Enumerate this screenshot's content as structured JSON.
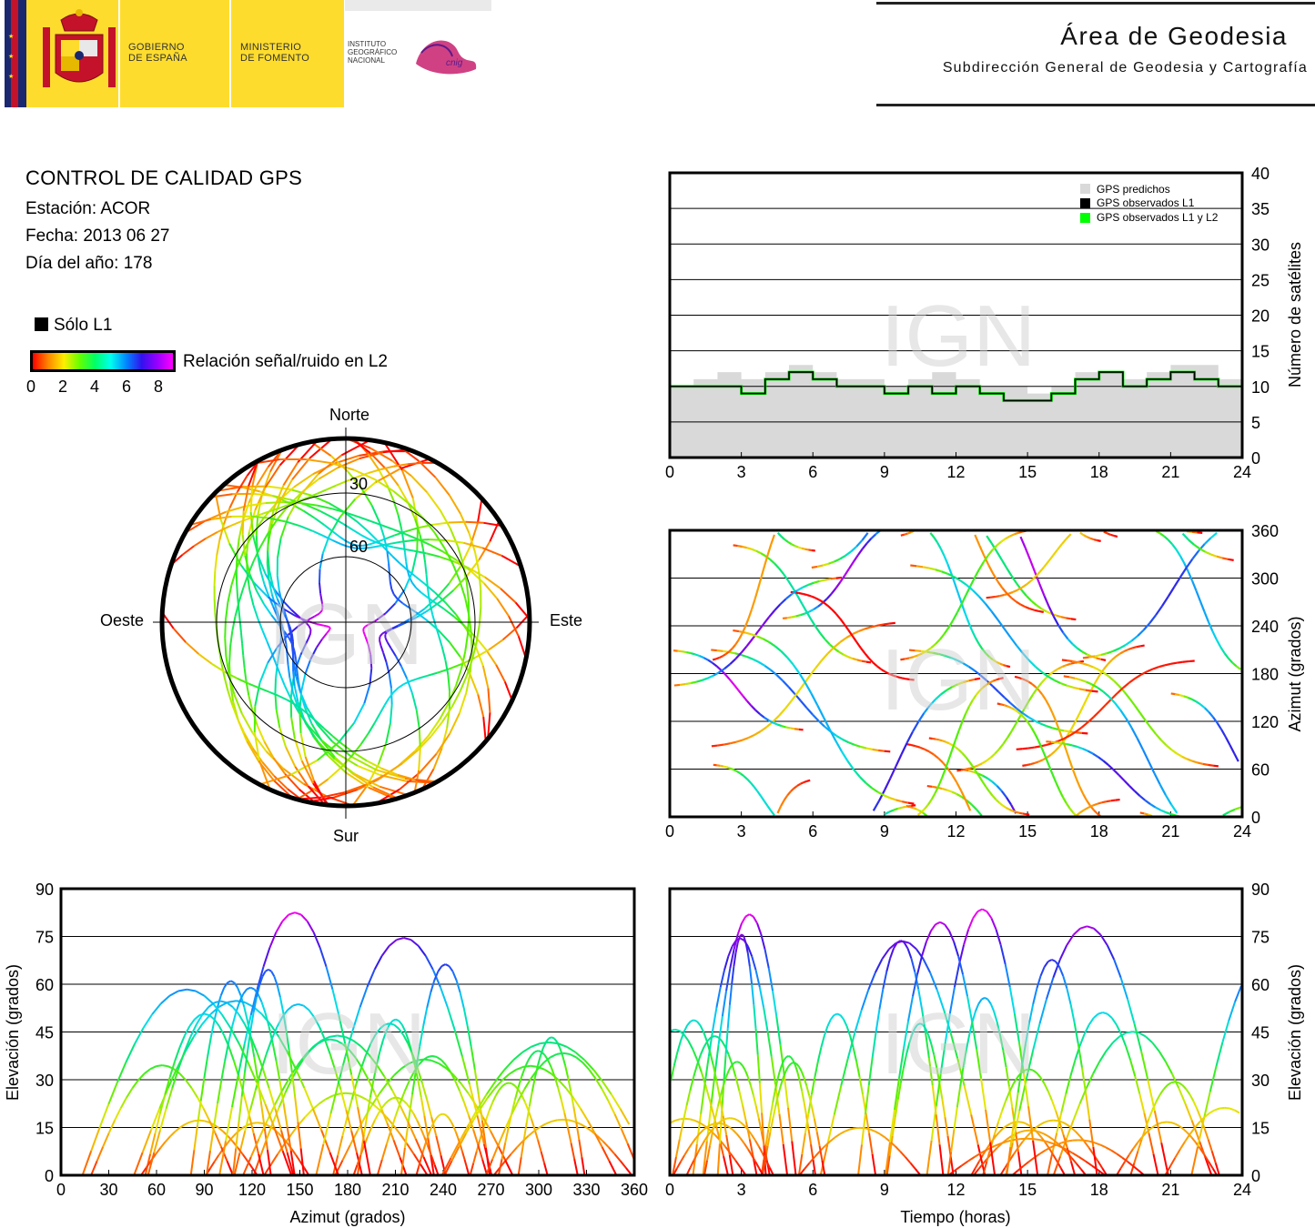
{
  "header": {
    "gobierno": [
      "GOBIERNO",
      "DE ESPAÑA"
    ],
    "ministerio": [
      "MINISTERIO",
      "DE FOMENTO"
    ],
    "instituto": [
      "INSTITUTO",
      "GEOGRÁFICO",
      "NACIONAL"
    ],
    "cnig": "cnig",
    "area_title": "Área de Geodesia",
    "area_subtitle": "Subdirección General de Geodesia y Cartografía",
    "colors": {
      "gov_yellow": "#fedc2e",
      "flag_red": "#c4122a",
      "navy": "#1a2870",
      "cnig_magenta": "#c8206e"
    }
  },
  "info": {
    "title": "CONTROL DE CALIDAD GPS",
    "station": "Estación: ACOR",
    "date": "Fecha: 2013 06 27",
    "doy": "Día del año: 178"
  },
  "legend": {
    "l1_label": "Sólo L1",
    "snr_label": "Relación señal/ruido en L2",
    "snr_ticks": [
      "0",
      "2",
      "4",
      "6",
      "8"
    ],
    "watermark": "IGN"
  },
  "chart_data": [
    {
      "name": "skyplot",
      "type": "scatter",
      "directions": {
        "north": "Norte",
        "south": "Sur",
        "west": "Oeste",
        "east": "Este"
      },
      "rings": [
        "30",
        "60"
      ],
      "note": "polar plot of satellite tracks colored by L2 SNR"
    },
    {
      "name": "satellites",
      "type": "line",
      "xlim": [
        0,
        24
      ],
      "ylim": [
        0,
        40
      ],
      "xticks": [
        "0",
        "3",
        "6",
        "9",
        "12",
        "15",
        "18",
        "21",
        "24"
      ],
      "yticks": [
        "0",
        "5",
        "10",
        "15",
        "20",
        "25",
        "30",
        "35",
        "40"
      ],
      "ylabel": "Número de satélites",
      "legend": [
        "GPS predichos",
        "GPS observados L1",
        "GPS observados L1 y L2"
      ],
      "series": [
        {
          "name": "GPS predichos",
          "x": [
            0,
            1,
            2,
            3,
            4,
            5,
            6,
            7,
            8,
            9,
            10,
            11,
            12,
            13,
            14,
            15,
            16,
            17,
            18,
            19,
            20,
            21,
            22,
            23,
            24
          ],
          "values": [
            10,
            11,
            12,
            11,
            12,
            13,
            12,
            11,
            11,
            10,
            11,
            12,
            11,
            10,
            10,
            9,
            10,
            12,
            12,
            11,
            12,
            13,
            13,
            11,
            10
          ]
        },
        {
          "name": "GPS observados L1",
          "x": [
            0,
            1,
            2,
            3,
            4,
            5,
            6,
            7,
            8,
            9,
            10,
            11,
            12,
            13,
            14,
            15,
            16,
            17,
            18,
            19,
            20,
            21,
            22,
            23,
            24
          ],
          "values": [
            10,
            10,
            10,
            9,
            11,
            12,
            11,
            10,
            10,
            9,
            10,
            9,
            10,
            9,
            8,
            8,
            9,
            11,
            12,
            10,
            11,
            12,
            11,
            10,
            9
          ]
        },
        {
          "name": "GPS observados L1 y L2",
          "x": [
            0,
            1,
            2,
            3,
            4,
            5,
            6,
            7,
            8,
            9,
            10,
            11,
            12,
            13,
            14,
            15,
            16,
            17,
            18,
            19,
            20,
            21,
            22,
            23,
            24
          ],
          "values": [
            10,
            10,
            10,
            9,
            11,
            12,
            11,
            10,
            10,
            9,
            10,
            9,
            10,
            9,
            8,
            8,
            9,
            11,
            12,
            10,
            11,
            12,
            11,
            10,
            9
          ]
        }
      ]
    },
    {
      "name": "azimuth-time",
      "type": "scatter",
      "xlim": [
        0,
        24
      ],
      "ylim": [
        0,
        360
      ],
      "xticks": [
        "0",
        "3",
        "6",
        "9",
        "12",
        "15",
        "18",
        "21",
        "24"
      ],
      "yticks": [
        "0",
        "60",
        "120",
        "180",
        "240",
        "300",
        "360"
      ],
      "ylabel": "Azimut (grados)"
    },
    {
      "name": "elevation-azimuth",
      "type": "scatter",
      "xlim": [
        0,
        360
      ],
      "ylim": [
        0,
        90
      ],
      "xticks": [
        "0",
        "30",
        "60",
        "90",
        "120",
        "150",
        "180",
        "210",
        "240",
        "270",
        "300",
        "330",
        "360"
      ],
      "yticks": [
        "0",
        "15",
        "30",
        "45",
        "60",
        "75",
        "90"
      ],
      "xlabel": "Azimut (grados)",
      "ylabel": "Elevación (grados)"
    },
    {
      "name": "elevation-time",
      "type": "scatter",
      "xlim": [
        0,
        24
      ],
      "ylim": [
        0,
        90
      ],
      "xticks": [
        "0",
        "3",
        "6",
        "9",
        "12",
        "15",
        "18",
        "21",
        "24"
      ],
      "yticks": [
        "0",
        "15",
        "30",
        "45",
        "60",
        "75",
        "90"
      ],
      "xlabel": "Tiempo (horas)",
      "ylabel": "Elevación (grados)"
    }
  ]
}
